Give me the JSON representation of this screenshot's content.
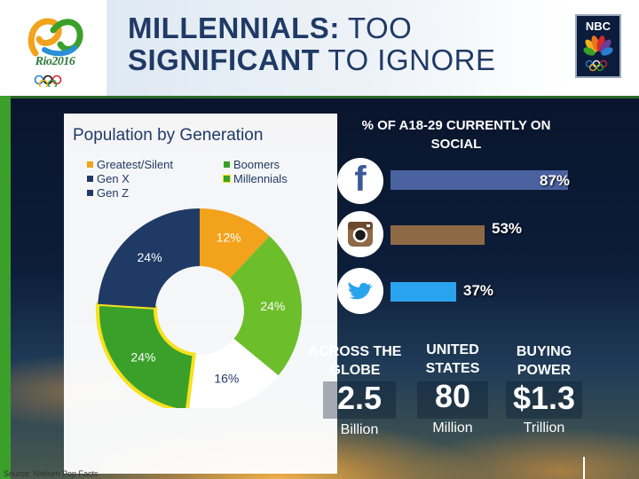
{
  "header": {
    "title_bold_1": "MILLENNIALS:",
    "title_rest_1": " TOO",
    "title_bold_2": "SIGNIFICANT",
    "title_rest_2": " TO IGNORE",
    "left_logo_text": "Rio2016",
    "right_logo_text": "NBC"
  },
  "chart_data": [
    {
      "type": "pie",
      "title": "Population by Generation",
      "legend": [
        {
          "label": "Greatest/Silent",
          "color": "#f3a21c"
        },
        {
          "label": "Boomers",
          "color": "#3aa02a"
        },
        {
          "label": "Gen X",
          "color": "#203a66"
        },
        {
          "label": "Millennials",
          "color": "#3aa02a"
        },
        {
          "label": "Gen Z",
          "color": "#203a66"
        }
      ],
      "slices": [
        {
          "series": "Greatest/Silent",
          "value": 12,
          "label": "12%",
          "color": "#f3a21c"
        },
        {
          "series": "Boomers",
          "value": 24,
          "label": "24%",
          "color": "#6cbf2a"
        },
        {
          "series": "Gen Z",
          "value": 16,
          "label": "16%",
          "color": "#ffffff"
        },
        {
          "series": "Millennials",
          "value": 24,
          "label": "24%",
          "color": "#3aa02a",
          "highlight": "#f7e11b"
        },
        {
          "series": "Gen X",
          "value": 24,
          "label": "24%",
          "color": "#203a66"
        }
      ]
    },
    {
      "type": "bar",
      "title": "% OF A18-29 CURRENTLY ON SOCIAL",
      "categories": [
        "facebook-icon",
        "instagram-icon",
        "twitter-icon"
      ],
      "values": [
        87,
        53,
        37
      ],
      "value_labels": [
        "87%",
        "53%",
        "37%"
      ],
      "colors": [
        "#4a62a0",
        "#8d6a45",
        "#2aa3ee"
      ],
      "xlim": [
        0,
        100
      ]
    }
  ],
  "source": "Source: Nielsen Pop Facts",
  "stats": [
    {
      "heading": "ACROSS THE GLOBE",
      "value": "2.5",
      "unit": "Billion"
    },
    {
      "heading": "UNITED STATES",
      "value": "80",
      "unit": "Million"
    },
    {
      "heading": "BUYING POWER",
      "value": "$1.3",
      "unit": "Trillion"
    }
  ]
}
